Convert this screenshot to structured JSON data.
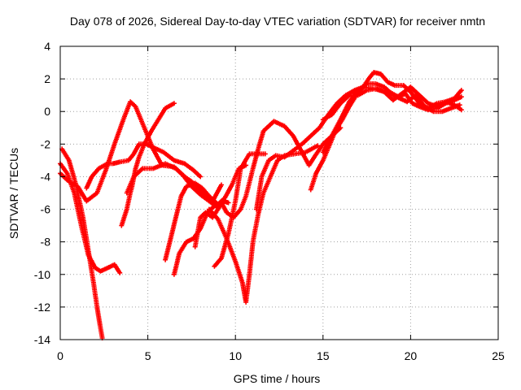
{
  "chart_data": {
    "type": "scatter",
    "title": "Day 078 of 2026, Sidereal Day-to-day VTEC variation (SDTVAR) for receiver nmtn",
    "xlabel": "GPS time / hours",
    "ylabel": "SDTVAR / TECUs",
    "xlim": [
      0,
      25
    ],
    "ylim": [
      -14,
      4
    ],
    "x_ticks": [
      0,
      5,
      10,
      15,
      20,
      25
    ],
    "x_tick_labels": [
      "0",
      "5",
      "10",
      "15",
      "20",
      "25"
    ],
    "y_ticks": [
      -14,
      -12,
      -10,
      -8,
      -6,
      -4,
      -2,
      0,
      2,
      4
    ],
    "y_tick_labels": [
      "-14",
      "-12",
      "-10",
      "-8",
      "-6",
      "-4",
      "-2",
      "0",
      "2",
      "4"
    ],
    "grid": true,
    "marker": "+",
    "color": "#ff0000",
    "series": [
      {
        "points": [
          [
            0.1,
            -2.3
          ],
          [
            0.5,
            -3.0
          ],
          [
            0.9,
            -4.5
          ],
          [
            1.3,
            -6.5
          ],
          [
            1.6,
            -8.5
          ],
          [
            1.9,
            -10.5
          ],
          [
            2.1,
            -12.0
          ],
          [
            2.3,
            -13.3
          ],
          [
            2.4,
            -13.9
          ]
        ]
      },
      {
        "points": [
          [
            0.0,
            -3.2
          ],
          [
            0.4,
            -3.8
          ],
          [
            0.8,
            -5.0
          ],
          [
            1.2,
            -7.0
          ],
          [
            1.6,
            -8.8
          ],
          [
            2.0,
            -9.6
          ],
          [
            2.3,
            -9.8
          ],
          [
            2.7,
            -9.6
          ],
          [
            3.1,
            -9.4
          ],
          [
            3.4,
            -9.9
          ]
        ]
      },
      {
        "points": [
          [
            0.0,
            -3.8
          ],
          [
            0.5,
            -4.3
          ],
          [
            1.0,
            -4.6
          ],
          [
            1.5,
            -5.5
          ],
          [
            2.1,
            -5.0
          ],
          [
            2.6,
            -3.6
          ],
          [
            3.1,
            -2.0
          ],
          [
            3.6,
            -0.5
          ],
          [
            4.0,
            0.6
          ],
          [
            4.3,
            0.3
          ],
          [
            4.8,
            -1.0
          ],
          [
            5.3,
            -2.3
          ],
          [
            5.8,
            -3.3
          ],
          [
            6.5,
            -3.4
          ],
          [
            7.0,
            -3.9
          ],
          [
            7.5,
            -4.6
          ],
          [
            8.0,
            -5.1
          ],
          [
            8.5,
            -5.5
          ],
          [
            9.0,
            -5.9
          ]
        ]
      },
      {
        "points": [
          [
            3.5,
            -7.0
          ],
          [
            3.8,
            -6.0
          ],
          [
            4.0,
            -5.0
          ],
          [
            4.1,
            -4.6
          ],
          [
            4.3,
            -3.5
          ],
          [
            4.5,
            -2.8
          ],
          [
            4.8,
            -2.0
          ],
          [
            5.2,
            -1.2
          ],
          [
            5.6,
            -0.5
          ],
          [
            6.0,
            0.2
          ],
          [
            6.5,
            0.5
          ]
        ]
      },
      {
        "points": [
          [
            3.8,
            -5.0
          ],
          [
            4.2,
            -4.0
          ],
          [
            4.7,
            -3.5
          ],
          [
            5.3,
            -3.5
          ],
          [
            6.0,
            -3.2
          ],
          [
            6.6,
            -3.5
          ],
          [
            7.1,
            -4.0
          ],
          [
            7.5,
            -4.3
          ],
          [
            8.2,
            -5.0
          ],
          [
            8.7,
            -5.5
          ],
          [
            9.2,
            -4.5
          ]
        ]
      },
      {
        "points": [
          [
            1.5,
            -4.7
          ],
          [
            1.8,
            -4.0
          ],
          [
            2.2,
            -3.5
          ],
          [
            2.7,
            -3.2
          ],
          [
            3.0,
            -3.2
          ],
          [
            3.4,
            -3.1
          ],
          [
            3.9,
            -3.0
          ],
          [
            4.2,
            -2.6
          ],
          [
            4.5,
            -2.0
          ],
          [
            4.9,
            -2.0
          ],
          [
            5.3,
            -2.2
          ],
          [
            5.9,
            -2.5
          ],
          [
            6.5,
            -3.0
          ],
          [
            7.1,
            -3.2
          ],
          [
            7.6,
            -3.6
          ],
          [
            8.0,
            -4.0
          ]
        ]
      },
      {
        "points": [
          [
            6.0,
            -9.1
          ],
          [
            6.3,
            -7.8
          ],
          [
            6.6,
            -6.5
          ],
          [
            6.9,
            -5.2
          ],
          [
            7.2,
            -4.6
          ],
          [
            7.7,
            -4.4
          ],
          [
            8.1,
            -4.7
          ],
          [
            8.5,
            -5.2
          ],
          [
            9.0,
            -5.7
          ],
          [
            9.4,
            -5.3
          ],
          [
            9.8,
            -4.5
          ],
          [
            10.2,
            -3.5
          ],
          [
            10.6,
            -3.3
          ]
        ]
      },
      {
        "points": [
          [
            6.5,
            -10.0
          ],
          [
            6.8,
            -8.7
          ],
          [
            7.2,
            -8.0
          ],
          [
            7.6,
            -7.8
          ],
          [
            8.0,
            -7.2
          ],
          [
            8.4,
            -6.2
          ],
          [
            8.8,
            -5.8
          ],
          [
            9.2,
            -5.6
          ],
          [
            9.5,
            -6.2
          ],
          [
            9.9,
            -6.5
          ],
          [
            10.3,
            -6.0
          ],
          [
            10.6,
            -5.2
          ],
          [
            11.0,
            -3.5
          ],
          [
            11.3,
            -2.3
          ],
          [
            11.6,
            -1.2
          ],
          [
            12.2,
            -0.6
          ],
          [
            12.8,
            -0.9
          ],
          [
            13.3,
            -1.5
          ],
          [
            13.8,
            -2.5
          ],
          [
            14.2,
            -3.3
          ],
          [
            14.5,
            -2.8
          ],
          [
            15.0,
            -2.0
          ],
          [
            15.5,
            -1.5
          ],
          [
            16.0,
            -1.0
          ]
        ]
      },
      {
        "points": [
          [
            7.7,
            -8.3
          ],
          [
            8.0,
            -6.5
          ],
          [
            8.3,
            -6.2
          ],
          [
            8.7,
            -6.5
          ],
          [
            9.0,
            -6.0
          ],
          [
            9.3,
            -5.5
          ],
          [
            9.6,
            -5.6
          ]
        ]
      },
      {
        "points": [
          [
            8.8,
            -9.5
          ],
          [
            9.2,
            -9.0
          ],
          [
            9.6,
            -7.5
          ],
          [
            10.0,
            -5.5
          ],
          [
            10.3,
            -3.5
          ],
          [
            10.8,
            -2.6
          ],
          [
            11.2,
            -2.6
          ],
          [
            11.7,
            -2.6
          ]
        ]
      },
      {
        "points": [
          [
            8.5,
            -6.0
          ],
          [
            9.0,
            -6.6
          ],
          [
            9.5,
            -7.8
          ],
          [
            10.0,
            -9.2
          ],
          [
            10.4,
            -10.5
          ],
          [
            10.6,
            -11.7
          ],
          [
            10.8,
            -10.0
          ],
          [
            11.0,
            -8.0
          ],
          [
            11.3,
            -6.3
          ],
          [
            11.6,
            -5.0
          ],
          [
            12.0,
            -4.0
          ],
          [
            12.4,
            -3.0
          ],
          [
            12.8,
            -2.7
          ],
          [
            13.4,
            -2.6
          ],
          [
            14.0,
            -2.5
          ],
          [
            14.7,
            -2.1
          ]
        ]
      },
      {
        "points": [
          [
            11.2,
            -6.0
          ],
          [
            11.5,
            -4.0
          ],
          [
            11.9,
            -3.0
          ],
          [
            12.3,
            -2.7
          ],
          [
            12.8,
            -2.8
          ],
          [
            13.3,
            -2.4
          ],
          [
            13.8,
            -2.0
          ],
          [
            14.3,
            -1.5
          ],
          [
            14.8,
            -1.0
          ],
          [
            15.3,
            -0.2
          ],
          [
            15.8,
            0.5
          ],
          [
            16.3,
            1.0
          ],
          [
            16.8,
            1.3
          ],
          [
            17.3,
            1.5
          ],
          [
            17.8,
            1.4
          ],
          [
            18.3,
            1.3
          ],
          [
            18.8,
            1.2
          ],
          [
            19.3,
            0.9
          ],
          [
            19.7,
            1.1
          ],
          [
            20.1,
            0.5
          ],
          [
            20.5,
            0.3
          ],
          [
            21.0,
            0.1
          ],
          [
            21.5,
            0.2
          ],
          [
            22.0,
            0.5
          ],
          [
            22.5,
            0.7
          ],
          [
            22.9,
            0.9
          ]
        ]
      },
      {
        "points": [
          [
            14.3,
            -4.8
          ],
          [
            14.6,
            -3.8
          ],
          [
            15.0,
            -3.0
          ],
          [
            15.4,
            -2.0
          ],
          [
            15.7,
            -1.2
          ],
          [
            16.1,
            -0.5
          ],
          [
            16.5,
            0.3
          ],
          [
            16.9,
            1.0
          ],
          [
            17.3,
            1.5
          ],
          [
            17.6,
            2.0
          ],
          [
            17.9,
            2.4
          ],
          [
            18.3,
            2.3
          ],
          [
            18.7,
            1.8
          ],
          [
            19.1,
            1.6
          ],
          [
            19.6,
            1.6
          ],
          [
            20.0,
            1.2
          ],
          [
            20.5,
            0.5
          ],
          [
            21.0,
            0.2
          ],
          [
            21.5,
            0.5
          ],
          [
            22.0,
            0.6
          ],
          [
            22.5,
            0.8
          ],
          [
            22.9,
            1.3
          ]
        ]
      },
      {
        "points": [
          [
            15.0,
            -2.5
          ],
          [
            15.5,
            -1.5
          ],
          [
            16.0,
            -0.5
          ],
          [
            16.5,
            0.6
          ],
          [
            17.0,
            1.3
          ],
          [
            17.5,
            1.7
          ],
          [
            18.0,
            1.7
          ],
          [
            18.5,
            1.5
          ],
          [
            19.0,
            1.0
          ],
          [
            19.4,
            0.8
          ],
          [
            19.8,
            0.6
          ],
          [
            20.3,
            1.0
          ],
          [
            20.8,
            0.3
          ],
          [
            21.3,
            0.0
          ],
          [
            21.8,
            0.0
          ],
          [
            22.3,
            0.2
          ],
          [
            22.8,
            0.4
          ]
        ]
      },
      {
        "points": [
          [
            15.0,
            -0.5
          ],
          [
            15.5,
            -0.2
          ],
          [
            16.0,
            0.5
          ],
          [
            16.5,
            1.0
          ],
          [
            17.0,
            1.0
          ],
          [
            17.5,
            1.3
          ],
          [
            18.0,
            1.4
          ],
          [
            18.5,
            1.2
          ],
          [
            19.0,
            0.7
          ],
          [
            19.5,
            1.1
          ],
          [
            20.0,
            1.5
          ],
          [
            20.5,
            1.0
          ],
          [
            21.0,
            0.5
          ],
          [
            21.5,
            0.3
          ],
          [
            22.0,
            0.6
          ],
          [
            22.5,
            0.4
          ],
          [
            22.9,
            0.1
          ]
        ]
      }
    ]
  }
}
